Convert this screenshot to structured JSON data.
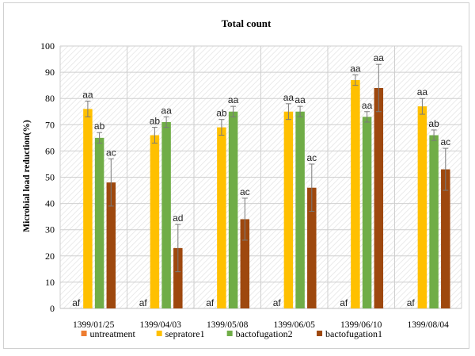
{
  "chart_data": {
    "type": "bar",
    "title": "Total count",
    "xlabel": "",
    "ylabel": "Microbial load reduction(%)",
    "ylim": [
      0,
      100
    ],
    "yticks": [
      0,
      10,
      20,
      30,
      40,
      50,
      60,
      70,
      80,
      90,
      100
    ],
    "categories": [
      "1399/01/25",
      "1399/04/03",
      "1399/05/08",
      "1399/06/05",
      "1399/06/10",
      "1399/08/04"
    ],
    "grid": true,
    "legend_position": "bottom",
    "series": [
      {
        "name": "untreatment",
        "color": "#ED7D31",
        "values": [
          0,
          0,
          0,
          0,
          0,
          0
        ],
        "errors": [
          0,
          0,
          0,
          0,
          0,
          0
        ],
        "labels": [
          "af",
          "af",
          "af",
          "af",
          "af",
          "af"
        ]
      },
      {
        "name": "sepratore1",
        "color": "#FFC000",
        "values": [
          76,
          66,
          69,
          75,
          87,
          77
        ],
        "errors": [
          3,
          3,
          3,
          3,
          2,
          3
        ],
        "labels": [
          "aa",
          "ab",
          "ab",
          "aa",
          "aa",
          "aa"
        ]
      },
      {
        "name": "bactofugation2",
        "color": "#70AD47",
        "values": [
          65,
          71,
          75,
          75,
          73,
          66
        ],
        "errors": [
          2,
          2,
          2,
          2,
          2,
          2
        ],
        "labels": [
          "ab",
          "aa",
          "aa",
          "aa",
          "aa",
          "ab"
        ]
      },
      {
        "name": "bactofugation1",
        "color": "#9E480E",
        "values": [
          48,
          23,
          34,
          46,
          84,
          53
        ],
        "errors": [
          9,
          9,
          8,
          9,
          9,
          8
        ],
        "labels": [
          "ac",
          "ad",
          "ac",
          "ac",
          "aa",
          "ac"
        ]
      }
    ]
  }
}
